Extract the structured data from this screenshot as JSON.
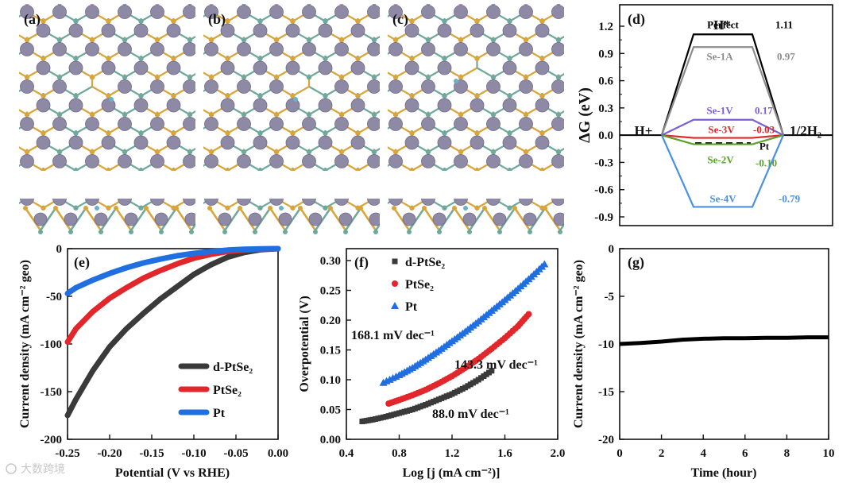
{
  "panels": {
    "a": {
      "label": "(a)"
    },
    "b": {
      "label": "(b)"
    },
    "c": {
      "label": "(c)"
    }
  },
  "colors": {
    "pt_atom": "#8e8aa6",
    "se_gold": "#d9a53a",
    "se_teal": "#6fa99c",
    "h_atom": "#69b3c9"
  },
  "watermark": "大数跨境",
  "chart_data": [
    {
      "id": "d",
      "panel_label": "(d)",
      "type": "line",
      "title": "",
      "ylabel": "ΔG (eV)",
      "ylim": [
        -0.9,
        1.2
      ],
      "yticks": [
        "1.2",
        "0.9",
        "0.6",
        "0.3",
        "0.0",
        "-0.3",
        "-0.6",
        "-0.9"
      ],
      "state_labels": {
        "left": "H+",
        "middle": "H*",
        "right": "1/2H₂"
      },
      "series": [
        {
          "name": "Perfect",
          "value": 1.11,
          "value_label": "1.11",
          "color": "#000000"
        },
        {
          "name": "Se-1A",
          "value": 0.97,
          "value_label": "0.97",
          "color": "#8c8c8c"
        },
        {
          "name": "Se-1V",
          "value": 0.17,
          "value_label": "0.17",
          "color": "#7b5fd6"
        },
        {
          "name": "Se-3V",
          "value": -0.03,
          "value_label": "-0.03",
          "color": "#e3262b"
        },
        {
          "name": "Pt",
          "value": -0.09,
          "value_label": "",
          "color": "#000000"
        },
        {
          "name": "Se-2V",
          "value": -0.1,
          "value_label": "-0.10",
          "color": "#5aa02c"
        },
        {
          "name": "Se-4V",
          "value": -0.79,
          "value_label": "-0.79",
          "color": "#4a90e2"
        }
      ]
    },
    {
      "id": "e",
      "panel_label": "(e)",
      "type": "line",
      "xlabel": "Potential (V vs RHE)",
      "ylabel": "Current density (mA cm⁻² geo)",
      "xlim": [
        -0.25,
        0.0
      ],
      "ylim": [
        -200,
        0
      ],
      "xticks": [
        "-0.25",
        "-0.20",
        "-0.15",
        "-0.10",
        "-0.05",
        "0.00"
      ],
      "yticks": [
        "0",
        "-50",
        "-100",
        "-150",
        "-200"
      ],
      "series": [
        {
          "name": "d-PtSe₂",
          "color": "#3a3a3a",
          "x": [
            -0.25,
            -0.24,
            -0.22,
            -0.2,
            -0.18,
            -0.16,
            -0.14,
            -0.12,
            -0.1,
            -0.08,
            -0.06,
            -0.04,
            -0.02,
            0.0
          ],
          "y": [
            -175,
            -158,
            -128,
            -103,
            -84,
            -68,
            -53,
            -40,
            -27,
            -17,
            -9,
            -4,
            -1,
            0
          ]
        },
        {
          "name": "PtSe₂",
          "color": "#e3262b",
          "x": [
            -0.25,
            -0.24,
            -0.22,
            -0.2,
            -0.18,
            -0.16,
            -0.14,
            -0.12,
            -0.1,
            -0.08,
            -0.06,
            -0.04,
            -0.02,
            0.0
          ],
          "y": [
            -98,
            -84,
            -66,
            -52,
            -41,
            -31,
            -23,
            -16,
            -10,
            -6,
            -3,
            -1.5,
            -0.5,
            0
          ]
        },
        {
          "name": "Pt",
          "color": "#1f6fe0",
          "x": [
            -0.25,
            -0.24,
            -0.22,
            -0.2,
            -0.18,
            -0.16,
            -0.14,
            -0.12,
            -0.1,
            -0.08,
            -0.06,
            -0.04,
            -0.02,
            0.0
          ],
          "y": [
            -47,
            -41,
            -33,
            -26,
            -20,
            -15,
            -11,
            -7.5,
            -5,
            -3,
            -1.5,
            -0.7,
            -0.2,
            0
          ]
        }
      ]
    },
    {
      "id": "f",
      "panel_label": "(f)",
      "type": "scatter",
      "xlabel": "Log [j (mA cm⁻²)]",
      "ylabel": "Overpotential (V)",
      "xlim": [
        0.4,
        2.0
      ],
      "ylim": [
        0.0,
        0.32
      ],
      "xticks": [
        "0.4",
        "0.8",
        "1.2",
        "1.6",
        "2.0"
      ],
      "yticks": [
        "0.00",
        "0.05",
        "0.10",
        "0.15",
        "0.20",
        "0.25",
        "0.30"
      ],
      "series": [
        {
          "name": "d-PtSe₂",
          "color": "#3a3a3a",
          "marker": "square",
          "tafel_label": "88.0 mV dec⁻¹",
          "x": [
            0.52,
            0.6,
            0.7,
            0.8,
            0.9,
            1.0,
            1.1,
            1.2,
            1.3,
            1.4,
            1.5
          ],
          "y": [
            0.03,
            0.033,
            0.038,
            0.044,
            0.05,
            0.058,
            0.067,
            0.076,
            0.087,
            0.1,
            0.115
          ]
        },
        {
          "name": "PtSe₂",
          "color": "#e3262b",
          "marker": "circle",
          "tafel_label": "143.3 mV dec⁻¹",
          "x": [
            0.72,
            0.8,
            0.9,
            1.0,
            1.1,
            1.2,
            1.3,
            1.4,
            1.5,
            1.6,
            1.7,
            1.78
          ],
          "y": [
            0.06,
            0.066,
            0.074,
            0.083,
            0.094,
            0.106,
            0.12,
            0.135,
            0.152,
            0.17,
            0.19,
            0.21
          ]
        },
        {
          "name": "Pt",
          "color": "#1f6fe0",
          "marker": "triangle",
          "tafel_label": "168.1 mV dec⁻¹",
          "x": [
            0.68,
            0.8,
            0.9,
            1.0,
            1.1,
            1.2,
            1.3,
            1.4,
            1.5,
            1.6,
            1.7,
            1.8,
            1.9
          ],
          "y": [
            0.095,
            0.108,
            0.12,
            0.134,
            0.149,
            0.165,
            0.181,
            0.198,
            0.216,
            0.234,
            0.253,
            0.273,
            0.294
          ]
        }
      ]
    },
    {
      "id": "g",
      "panel_label": "(g)",
      "type": "line",
      "xlabel": "Time (hour)",
      "ylabel": "Current density (mA cm⁻² geo)",
      "xlim": [
        0,
        10
      ],
      "ylim": [
        -20,
        0
      ],
      "xticks": [
        "0",
        "2",
        "4",
        "6",
        "8",
        "10"
      ],
      "yticks": [
        "0",
        "-5",
        "-10",
        "-15",
        "-20"
      ],
      "series": [
        {
          "name": "d-PtSe₂",
          "color": "#000000",
          "x": [
            0,
            1,
            2,
            3,
            4,
            5,
            6,
            7,
            8,
            9,
            10
          ],
          "y": [
            -10.0,
            -9.9,
            -9.75,
            -9.55,
            -9.45,
            -9.4,
            -9.4,
            -9.35,
            -9.35,
            -9.3,
            -9.3
          ]
        }
      ]
    }
  ]
}
